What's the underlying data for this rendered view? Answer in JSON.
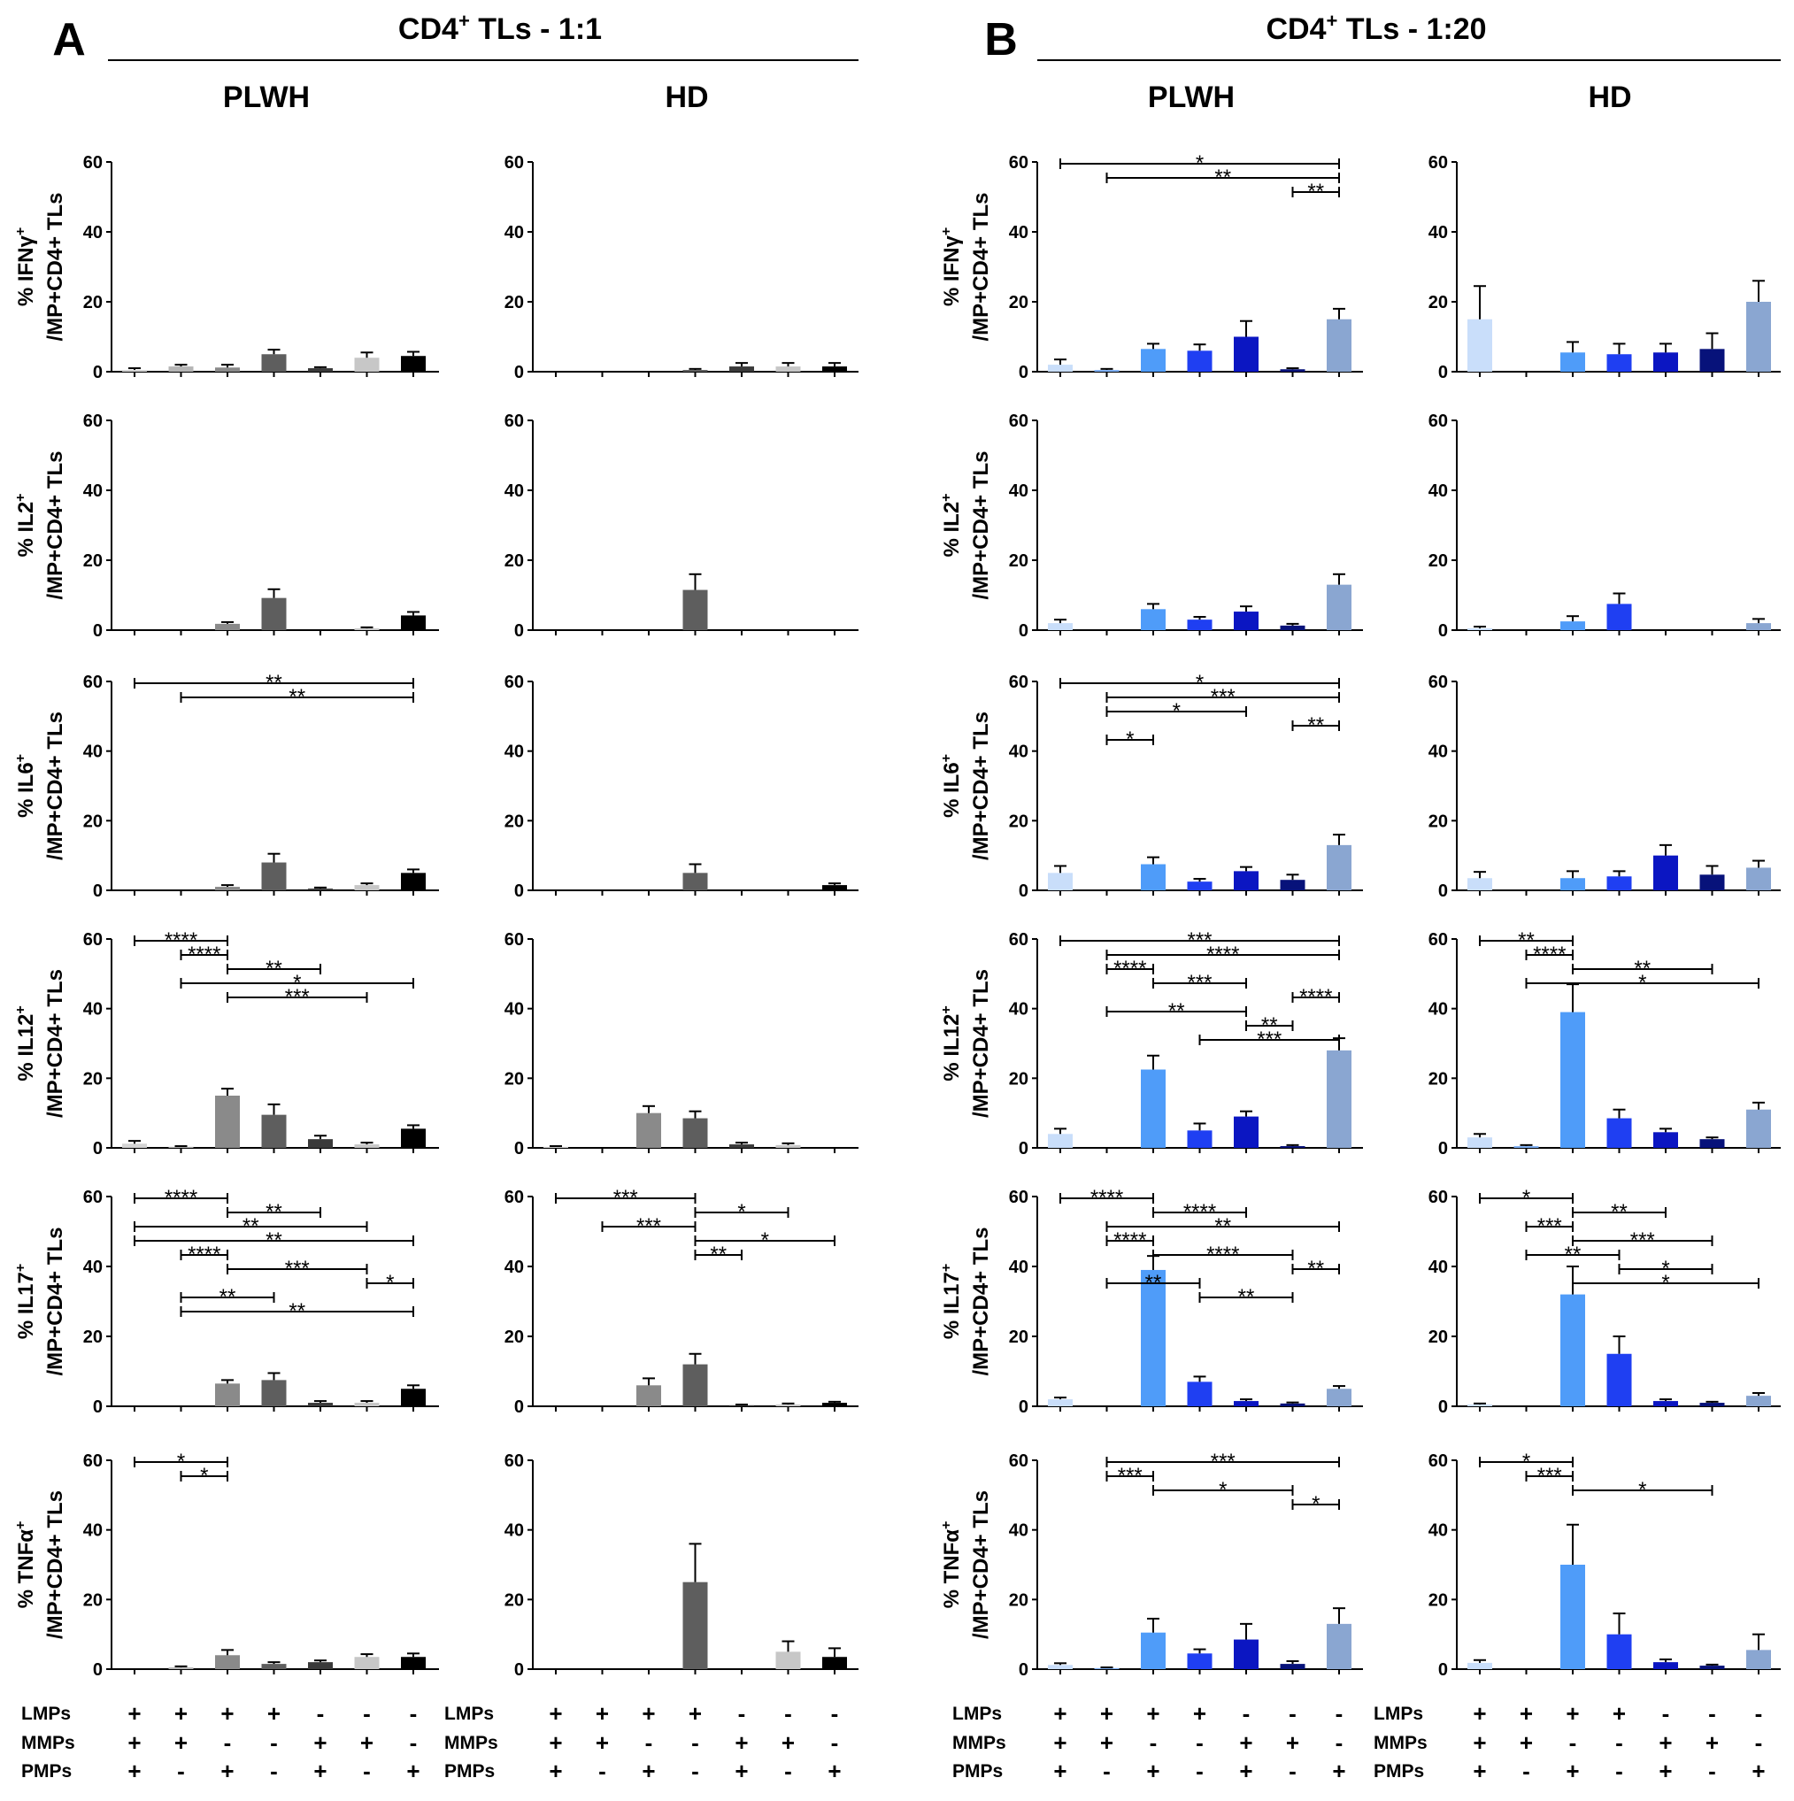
{
  "panels": [
    {
      "letter": "A",
      "title": "CD4",
      "title_sup": "+",
      "title_rest": " TLs - 1:1"
    },
    {
      "letter": "B",
      "title": "CD4",
      "title_sup": "+",
      "title_rest": " TLs - 1:20"
    }
  ],
  "columns": [
    "PLWH",
    "HD",
    "PLWH",
    "HD"
  ],
  "rows": [
    {
      "label": "% IFNγ",
      "sup": "+"
    },
    {
      "label": "% IL2",
      "sup": "+"
    },
    {
      "label": "% IL6",
      "sup": "+"
    },
    {
      "label": "% IL12",
      "sup": "+"
    },
    {
      "label": "% IL17",
      "sup": "+"
    },
    {
      "label": "% TNFα",
      "sup": "+"
    }
  ],
  "ylabel_second": "/MP+CD4+ TLs",
  "yticks": [
    "0",
    "20",
    "40",
    "60"
  ],
  "conditions": {
    "names": [
      "LMPs",
      "MMPs",
      "PMPs"
    ],
    "signs": [
      [
        "+",
        "+",
        "+",
        "+",
        "-",
        "-",
        "-"
      ],
      [
        "+",
        "+",
        "-",
        "-",
        "+",
        "+",
        "-"
      ],
      [
        "+",
        "-",
        "+",
        "-",
        "+",
        "-",
        "+"
      ]
    ]
  },
  "colors": {
    "grey": [
      "#d4d4d4",
      "#b5b5b5",
      "#8a8a8a",
      "#5e5e5e",
      "#3a3a3a",
      "#c7c7c7",
      "#000000"
    ],
    "blue": [
      "#c9defa",
      "#7fb1f5",
      "#4f9cf9",
      "#1f3ff2",
      "#0b16c2",
      "#07127a",
      "#8aa6d1"
    ]
  },
  "chart_data": [
    {
      "type": "bar",
      "panel": "A",
      "column": "PLWH",
      "row": "IFNγ",
      "ylim": [
        0,
        60
      ],
      "values": [
        0.5,
        1.5,
        1.2,
        5,
        1,
        4,
        4.5
      ],
      "errors": [
        0.5,
        0.5,
        0.8,
        1.3,
        0.3,
        1.5,
        1.2
      ],
      "sig": []
    },
    {
      "type": "bar",
      "panel": "A",
      "column": "HD",
      "row": "IFNγ",
      "ylim": [
        0,
        60
      ],
      "values": [
        0,
        0,
        0,
        0.5,
        1.5,
        1.5,
        1.5
      ],
      "errors": [
        0,
        0,
        0,
        0.3,
        1,
        1,
        1
      ],
      "sig": []
    },
    {
      "type": "bar",
      "panel": "B",
      "column": "PLWH",
      "row": "IFNγ",
      "ylim": [
        0,
        60
      ],
      "values": [
        2,
        0.5,
        6.5,
        6,
        10,
        0.7,
        15
      ],
      "errors": [
        1.5,
        0.3,
        1.5,
        1.8,
        4.5,
        0.3,
        3
      ],
      "sig": [
        {
          "from": 0,
          "to": 6,
          "label": "*"
        },
        {
          "from": 1,
          "to": 6,
          "label": "**"
        },
        {
          "from": 5,
          "to": 6,
          "label": "**"
        }
      ]
    },
    {
      "type": "bar",
      "panel": "B",
      "column": "HD",
      "row": "IFNγ",
      "ylim": [
        0,
        60
      ],
      "values": [
        15,
        0,
        5.5,
        5,
        5.5,
        6.5,
        20
      ],
      "errors": [
        9.5,
        0,
        3,
        3,
        2.5,
        4.5,
        6
      ],
      "sig": []
    },
    {
      "type": "bar",
      "panel": "A",
      "column": "PLWH",
      "row": "IL2",
      "ylim": [
        0,
        60
      ],
      "values": [
        0,
        0,
        1.8,
        9.2,
        0,
        0.5,
        4.2
      ],
      "errors": [
        0,
        0,
        0.5,
        2.5,
        0,
        0.3,
        1
      ],
      "sig": []
    },
    {
      "type": "bar",
      "panel": "A",
      "column": "HD",
      "row": "IL2",
      "ylim": [
        0,
        60
      ],
      "values": [
        0,
        0,
        0,
        11.5,
        0,
        0,
        0
      ],
      "errors": [
        0,
        0,
        0,
        4.5,
        0,
        0,
        0
      ],
      "sig": []
    },
    {
      "type": "bar",
      "panel": "B",
      "column": "PLWH",
      "row": "IL2",
      "ylim": [
        0,
        60
      ],
      "values": [
        2,
        0,
        6,
        3,
        5.3,
        1.3,
        13
      ],
      "errors": [
        1,
        0,
        1.5,
        0.8,
        1.5,
        0.5,
        3
      ],
      "sig": []
    },
    {
      "type": "bar",
      "panel": "B",
      "column": "HD",
      "row": "IL2",
      "ylim": [
        0,
        60
      ],
      "values": [
        0.5,
        0,
        2.5,
        7.5,
        0,
        0,
        2
      ],
      "errors": [
        0.5,
        0,
        1.5,
        3,
        0,
        0,
        1.2
      ],
      "sig": []
    },
    {
      "type": "bar",
      "panel": "A",
      "column": "PLWH",
      "row": "IL6",
      "ylim": [
        0,
        60
      ],
      "values": [
        0,
        0,
        1,
        8,
        0.5,
        1.5,
        5
      ],
      "errors": [
        0,
        0,
        0.5,
        2.5,
        0.3,
        0.5,
        1
      ],
      "sig": [
        {
          "from": 0,
          "to": 6,
          "label": "**"
        },
        {
          "from": 1,
          "to": 6,
          "label": "**"
        }
      ]
    },
    {
      "type": "bar",
      "panel": "A",
      "column": "HD",
      "row": "IL6",
      "ylim": [
        0,
        60
      ],
      "values": [
        0,
        0,
        0,
        5,
        0,
        0,
        1.5
      ],
      "errors": [
        0,
        0,
        0,
        2.5,
        0,
        0,
        0.5
      ],
      "sig": []
    },
    {
      "type": "bar",
      "panel": "B",
      "column": "PLWH",
      "row": "IL6",
      "ylim": [
        0,
        60
      ],
      "values": [
        5,
        0,
        7.5,
        2.5,
        5.5,
        3,
        13
      ],
      "errors": [
        2,
        0,
        2,
        0.8,
        1.2,
        1.5,
        3
      ],
      "sig": [
        {
          "from": 0,
          "to": 6,
          "label": "*"
        },
        {
          "from": 1,
          "to": 6,
          "label": "***"
        },
        {
          "from": 1,
          "to": 4,
          "label": "*"
        },
        {
          "from": 5,
          "to": 6,
          "label": "**"
        },
        {
          "from": 1,
          "to": 2,
          "label": "*"
        }
      ]
    },
    {
      "type": "bar",
      "panel": "B",
      "column": "HD",
      "row": "IL6",
      "ylim": [
        0,
        60
      ],
      "values": [
        3.5,
        0,
        3.5,
        4,
        10,
        4.5,
        6.5
      ],
      "errors": [
        1.8,
        0,
        2,
        1.5,
        3,
        2.5,
        2
      ],
      "sig": []
    },
    {
      "type": "bar",
      "panel": "A",
      "column": "PLWH",
      "row": "IL12",
      "ylim": [
        0,
        60
      ],
      "values": [
        1.2,
        0.3,
        15,
        9.5,
        2.5,
        1,
        5.5
      ],
      "errors": [
        0.8,
        0.2,
        2,
        3,
        1,
        0.5,
        1
      ],
      "sig": [
        {
          "from": 0,
          "to": 2,
          "label": "****"
        },
        {
          "from": 1,
          "to": 2,
          "label": "****"
        },
        {
          "from": 2,
          "to": 4,
          "label": "**"
        },
        {
          "from": 1,
          "to": 6,
          "label": "*"
        },
        {
          "from": 2,
          "to": 5,
          "label": "***"
        }
      ]
    },
    {
      "type": "bar",
      "panel": "A",
      "column": "HD",
      "row": "IL12",
      "ylim": [
        0,
        60
      ],
      "values": [
        0.3,
        0,
        10,
        8.5,
        1,
        0.8,
        0
      ],
      "errors": [
        0.2,
        0,
        2,
        2,
        0.5,
        0.5,
        0
      ],
      "sig": []
    },
    {
      "type": "bar",
      "panel": "B",
      "column": "PLWH",
      "row": "IL12",
      "ylim": [
        0,
        60
      ],
      "values": [
        4,
        0,
        22.5,
        5,
        9,
        0.5,
        28
      ],
      "errors": [
        1.5,
        0,
        4,
        2,
        1.5,
        0.3,
        3.5
      ],
      "sig": [
        {
          "from": 0,
          "to": 6,
          "label": "***"
        },
        {
          "from": 1,
          "to": 6,
          "label": "****"
        },
        {
          "from": 1,
          "to": 2,
          "label": "****"
        },
        {
          "from": 2,
          "to": 4,
          "label": "***"
        },
        {
          "from": 5,
          "to": 6,
          "label": "****"
        },
        {
          "from": 1,
          "to": 4,
          "label": "**"
        },
        {
          "from": 4,
          "to": 5,
          "label": "**"
        },
        {
          "from": 3,
          "to": 6,
          "label": "***"
        }
      ]
    },
    {
      "type": "bar",
      "panel": "B",
      "column": "HD",
      "row": "IL12",
      "ylim": [
        0,
        60
      ],
      "values": [
        3,
        0.5,
        39,
        8.5,
        4.5,
        2.5,
        11
      ],
      "errors": [
        1,
        0.3,
        8,
        2.5,
        1,
        0.5,
        2
      ],
      "sig": [
        {
          "from": 0,
          "to": 2,
          "label": "**"
        },
        {
          "from": 1,
          "to": 2,
          "label": "****"
        },
        {
          "from": 2,
          "to": 5,
          "label": "**"
        },
        {
          "from": 1,
          "to": 6,
          "label": "*"
        }
      ]
    },
    {
      "type": "bar",
      "panel": "A",
      "column": "PLWH",
      "row": "IL17",
      "ylim": [
        0,
        60
      ],
      "values": [
        0,
        0,
        6.5,
        7.5,
        1,
        1,
        5
      ],
      "errors": [
        0,
        0,
        1,
        2,
        0.5,
        0.5,
        1
      ],
      "sig": [
        {
          "from": 0,
          "to": 2,
          "label": "****"
        },
        {
          "from": 2,
          "to": 4,
          "label": "**"
        },
        {
          "from": 0,
          "to": 5,
          "label": "**"
        },
        {
          "from": 0,
          "to": 6,
          "label": "**"
        },
        {
          "from": 1,
          "to": 2,
          "label": "****"
        },
        {
          "from": 2,
          "to": 5,
          "label": "***"
        },
        {
          "from": 5,
          "to": 6,
          "label": "*"
        },
        {
          "from": 1,
          "to": 3,
          "label": "**"
        },
        {
          "from": 1,
          "to": 6,
          "label": "**"
        }
      ]
    },
    {
      "type": "bar",
      "panel": "A",
      "column": "HD",
      "row": "IL17",
      "ylim": [
        0,
        60
      ],
      "values": [
        0,
        0,
        6,
        12,
        0.3,
        0.5,
        1
      ],
      "errors": [
        0,
        0,
        2,
        3,
        0.2,
        0.3,
        0.3
      ],
      "sig": [
        {
          "from": 0,
          "to": 3,
          "label": "***"
        },
        {
          "from": 3,
          "to": 5,
          "label": "*"
        },
        {
          "from": 1,
          "to": 3,
          "label": "***"
        },
        {
          "from": 3,
          "to": 6,
          "label": "*"
        },
        {
          "from": 3,
          "to": 4,
          "label": "**"
        }
      ]
    },
    {
      "type": "bar",
      "panel": "B",
      "column": "PLWH",
      "row": "IL17",
      "ylim": [
        0,
        60
      ],
      "values": [
        2,
        0,
        39,
        7,
        1.5,
        0.8,
        5
      ],
      "errors": [
        0.5,
        0,
        4,
        1.5,
        0.5,
        0.3,
        0.8
      ],
      "sig": [
        {
          "from": 0,
          "to": 2,
          "label": "****"
        },
        {
          "from": 2,
          "to": 4,
          "label": "****"
        },
        {
          "from": 1,
          "to": 6,
          "label": "**"
        },
        {
          "from": 1,
          "to": 2,
          "label": "****"
        },
        {
          "from": 2,
          "to": 5,
          "label": "****"
        },
        {
          "from": 5,
          "to": 6,
          "label": "**"
        },
        {
          "from": 1,
          "to": 3,
          "label": "**"
        },
        {
          "from": 3,
          "to": 5,
          "label": "**"
        }
      ]
    },
    {
      "type": "bar",
      "panel": "B",
      "column": "HD",
      "row": "IL17",
      "ylim": [
        0,
        60
      ],
      "values": [
        0.5,
        0,
        32,
        15,
        1.5,
        1,
        3
      ],
      "errors": [
        0.3,
        0,
        8,
        5,
        0.5,
        0.3,
        0.8
      ],
      "sig": [
        {
          "from": 0,
          "to": 2,
          "label": "*"
        },
        {
          "from": 2,
          "to": 4,
          "label": "**"
        },
        {
          "from": 1,
          "to": 2,
          "label": "***"
        },
        {
          "from": 2,
          "to": 5,
          "label": "***"
        },
        {
          "from": 1,
          "to": 3,
          "label": "**"
        },
        {
          "from": 3,
          "to": 5,
          "label": "*"
        },
        {
          "from": 2,
          "to": 6,
          "label": "*"
        }
      ]
    },
    {
      "type": "bar",
      "panel": "A",
      "column": "PLWH",
      "row": "TNFα",
      "ylim": [
        0,
        60
      ],
      "values": [
        0,
        0.5,
        4,
        1.5,
        2,
        3.5,
        3.5
      ],
      "errors": [
        0,
        0.3,
        1.5,
        0.5,
        0.5,
        0.8,
        1
      ],
      "sig": [
        {
          "from": 0,
          "to": 2,
          "label": "*"
        },
        {
          "from": 1,
          "to": 2,
          "label": "*"
        }
      ]
    },
    {
      "type": "bar",
      "panel": "A",
      "column": "HD",
      "row": "TNFα",
      "ylim": [
        0,
        60
      ],
      "values": [
        0,
        0,
        0,
        25,
        0,
        5,
        3.5
      ],
      "errors": [
        0,
        0,
        0,
        11,
        0,
        3,
        2.5
      ],
      "sig": []
    },
    {
      "type": "bar",
      "panel": "B",
      "column": "PLWH",
      "row": "TNFα",
      "ylim": [
        0,
        60
      ],
      "values": [
        1.2,
        0.3,
        10.5,
        4.5,
        8.5,
        1.5,
        13
      ],
      "errors": [
        0.5,
        0.2,
        4,
        1.2,
        4.5,
        0.8,
        4.5
      ],
      "sig": [
        {
          "from": 1,
          "to": 6,
          "label": "***"
        },
        {
          "from": 1,
          "to": 2,
          "label": "***"
        },
        {
          "from": 2,
          "to": 5,
          "label": "*"
        },
        {
          "from": 5,
          "to": 6,
          "label": "*"
        }
      ]
    },
    {
      "type": "bar",
      "panel": "B",
      "column": "HD",
      "row": "TNFα",
      "ylim": [
        0,
        60
      ],
      "values": [
        1.8,
        0,
        30,
        10,
        2,
        1,
        5.5
      ],
      "errors": [
        0.8,
        0,
        11.5,
        6,
        0.8,
        0.3,
        4.5
      ],
      "sig": [
        {
          "from": 0,
          "to": 2,
          "label": "*"
        },
        {
          "from": 1,
          "to": 2,
          "label": "***"
        },
        {
          "from": 2,
          "to": 5,
          "label": "*"
        }
      ]
    }
  ]
}
